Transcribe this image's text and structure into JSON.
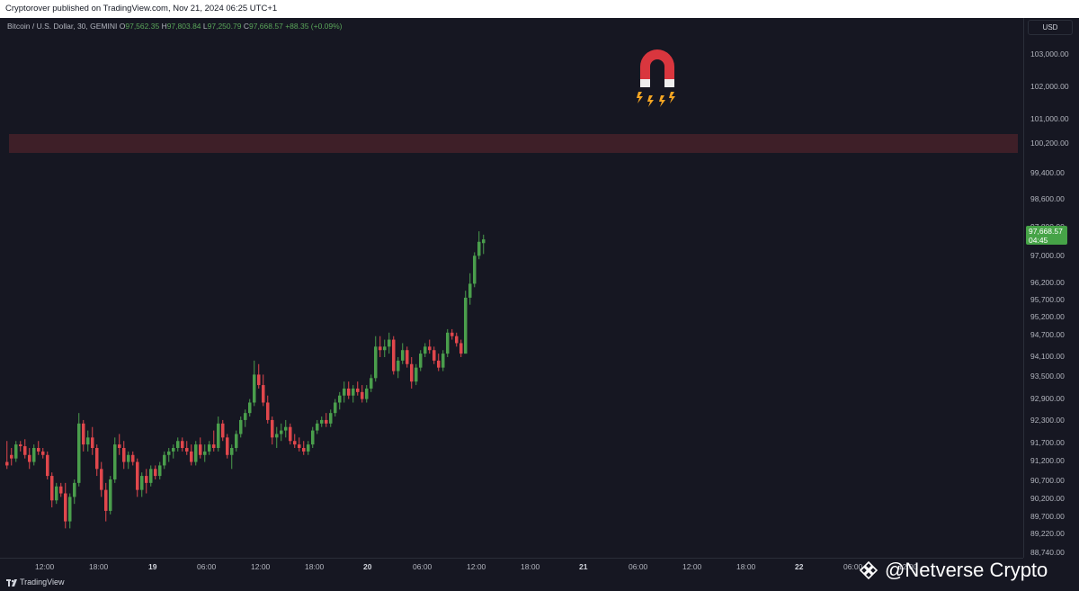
{
  "header": {
    "published_text": "Cryptorover published on TradingView.com, Nov 21, 2024 06:25 UTC+1"
  },
  "legend": {
    "symbol": "Bitcoin / U.S. Dollar, 30, GEMINI",
    "o_key": "O",
    "o_val": "97,562.35",
    "h_key": "H",
    "h_val": "97,803.84",
    "l_key": "L",
    "l_val": "97,250.79",
    "c_key": "C",
    "c_val": "97,668.57",
    "change": "+88.35 (+0.09%)"
  },
  "price_scale": {
    "currency": "USD",
    "labels": [
      "103,000.00",
      "102,000.00",
      "101,000.00",
      "100,200.00",
      "99,400.00",
      "98,600.00",
      "97,800.00",
      "97,000.00",
      "96,200.00",
      "95,700.00",
      "95,200.00",
      "94,700.00",
      "94,100.00",
      "93,500.00",
      "92,900.00",
      "92,300.00",
      "91,700.00",
      "91,200.00",
      "90,700.00",
      "90,200.00",
      "89,700.00",
      "89,220.00",
      "88,740.00"
    ],
    "current_price": "97,668.57",
    "countdown": "04:45"
  },
  "time_axis": {
    "labels": [
      "12:00",
      "18:00",
      "19",
      "06:00",
      "12:00",
      "18:00",
      "20",
      "06:00",
      "12:00",
      "18:00",
      "21",
      "06:00",
      "12:00",
      "18:00",
      "22",
      "06:00",
      "12:00"
    ],
    "bold": [
      false,
      false,
      true,
      false,
      false,
      false,
      true,
      false,
      false,
      false,
      true,
      false,
      false,
      false,
      true,
      false,
      false
    ]
  },
  "footer": {
    "brand": "TradingView"
  },
  "watermark": {
    "text": "@Netverse Crypto"
  },
  "colors": {
    "up": "#4a9e4c",
    "down": "#e0474c",
    "background": "#161722",
    "zone": "#3e1f28",
    "current_tag": "#46a347"
  },
  "annotations": {
    "magnet": "magnet-icon",
    "resistance_zone": "100,200.00"
  },
  "chart_data": {
    "type": "candlestick",
    "symbol": "BTCUSD",
    "interval": "30",
    "ylim": [
      88500,
      103600
    ],
    "resistance_zone": [
      100100,
      100600
    ],
    "candles": [
      [
        91300,
        91900,
        91100,
        91200
      ],
      [
        91500,
        91700,
        91200,
        91400
      ],
      [
        91400,
        91900,
        91300,
        91800
      ],
      [
        91800,
        91900,
        91600,
        91750
      ],
      [
        91750,
        91950,
        91400,
        91500
      ],
      [
        91500,
        91700,
        91100,
        91300
      ],
      [
        91300,
        91800,
        91200,
        91700
      ],
      [
        91700,
        91900,
        91500,
        91600
      ],
      [
        91600,
        91700,
        91400,
        91500
      ],
      [
        91500,
        91600,
        90800,
        90900
      ],
      [
        90900,
        91000,
        90000,
        90200
      ],
      [
        90200,
        90700,
        90100,
        90600
      ],
      [
        90600,
        90700,
        90300,
        90400
      ],
      [
        90400,
        90700,
        89400,
        89600
      ],
      [
        89600,
        90400,
        89400,
        90300
      ],
      [
        90300,
        90800,
        90100,
        90700
      ],
      [
        90700,
        92700,
        90600,
        92400
      ],
      [
        92400,
        92500,
        91600,
        91800
      ],
      [
        91800,
        92200,
        91600,
        92000
      ],
      [
        92000,
        92300,
        91500,
        91700
      ],
      [
        91700,
        91800,
        90900,
        91100
      ],
      [
        91100,
        91300,
        90300,
        90500
      ],
      [
        90500,
        90700,
        89600,
        89900
      ],
      [
        89900,
        90900,
        89800,
        90800
      ],
      [
        90800,
        92000,
        90700,
        91800
      ],
      [
        91800,
        92100,
        91500,
        91700
      ],
      [
        91700,
        91900,
        91100,
        91300
      ],
      [
        91300,
        91600,
        91100,
        91500
      ],
      [
        91500,
        91600,
        91200,
        91300
      ],
      [
        91300,
        91400,
        90300,
        90500
      ],
      [
        90500,
        91000,
        90300,
        90900
      ],
      [
        90900,
        91100,
        90400,
        90700
      ],
      [
        90700,
        91200,
        90600,
        91100
      ],
      [
        91100,
        91200,
        90800,
        90900
      ],
      [
        90900,
        91300,
        90800,
        91200
      ],
      [
        91200,
        91600,
        91100,
        91500
      ],
      [
        91500,
        91700,
        91300,
        91600
      ],
      [
        91600,
        91800,
        91400,
        91700
      ],
      [
        91700,
        92000,
        91600,
        91900
      ],
      [
        91900,
        92000,
        91600,
        91700
      ],
      [
        91700,
        91900,
        91500,
        91600
      ],
      [
        91600,
        91800,
        91200,
        91300
      ],
      [
        91300,
        91900,
        91200,
        91800
      ],
      [
        91800,
        92000,
        91400,
        91500
      ],
      [
        91500,
        91800,
        91300,
        91600
      ],
      [
        91600,
        91900,
        91500,
        91800
      ],
      [
        91800,
        92200,
        91600,
        91700
      ],
      [
        91700,
        92600,
        91600,
        92400
      ],
      [
        92400,
        92500,
        91900,
        92000
      ],
      [
        92000,
        92100,
        91400,
        91500
      ],
      [
        91500,
        91800,
        91100,
        91700
      ],
      [
        91700,
        92200,
        91600,
        92100
      ],
      [
        92100,
        92600,
        92000,
        92500
      ],
      [
        92500,
        92800,
        92300,
        92700
      ],
      [
        92700,
        93100,
        92600,
        93000
      ],
      [
        93000,
        94200,
        92900,
        93800
      ],
      [
        93800,
        94100,
        93400,
        93500
      ],
      [
        93500,
        93800,
        92900,
        93000
      ],
      [
        93000,
        93200,
        92400,
        92500
      ],
      [
        92500,
        92600,
        91800,
        92000
      ],
      [
        92000,
        92300,
        91700,
        92100
      ],
      [
        92100,
        92400,
        91900,
        92200
      ],
      [
        92200,
        92500,
        92000,
        92300
      ],
      [
        92300,
        92400,
        91800,
        91900
      ],
      [
        91900,
        92100,
        91700,
        91800
      ],
      [
        91800,
        92000,
        91600,
        91700
      ],
      [
        91700,
        91900,
        91500,
        91600
      ],
      [
        91600,
        91900,
        91500,
        91800
      ],
      [
        91800,
        92300,
        91700,
        92200
      ],
      [
        92200,
        92500,
        92100,
        92400
      ],
      [
        92400,
        92600,
        92300,
        92500
      ],
      [
        92500,
        92700,
        92300,
        92400
      ],
      [
        92400,
        92800,
        92300,
        92700
      ],
      [
        92700,
        93100,
        92600,
        93000
      ],
      [
        93000,
        93300,
        92800,
        93200
      ],
      [
        93200,
        93600,
        93000,
        93400
      ],
      [
        93400,
        93600,
        93100,
        93200
      ],
      [
        93200,
        93500,
        93000,
        93400
      ],
      [
        93400,
        93600,
        93200,
        93300
      ],
      [
        93300,
        93500,
        93000,
        93100
      ],
      [
        93100,
        93500,
        93000,
        93400
      ],
      [
        93400,
        93800,
        93300,
        93700
      ],
      [
        93700,
        94900,
        93600,
        94600
      ],
      [
        94600,
        94900,
        94300,
        94500
      ],
      [
        94500,
        94800,
        94300,
        94600
      ],
      [
        94600,
        95000,
        94400,
        94800
      ],
      [
        94800,
        94900,
        93800,
        93900
      ],
      [
        93900,
        94300,
        93700,
        94200
      ],
      [
        94200,
        94700,
        94100,
        94500
      ],
      [
        94500,
        94600,
        94000,
        94100
      ],
      [
        94100,
        94300,
        93400,
        93600
      ],
      [
        93600,
        94100,
        93500,
        94000
      ],
      [
        94000,
        94500,
        93900,
        94400
      ],
      [
        94400,
        94700,
        94300,
        94600
      ],
      [
        94600,
        94800,
        94400,
        94500
      ],
      [
        94500,
        94600,
        94100,
        94200
      ],
      [
        94200,
        94400,
        93900,
        94000
      ],
      [
        94000,
        94500,
        93900,
        94400
      ],
      [
        94400,
        95100,
        94300,
        95000
      ],
      [
        95000,
        95100,
        94800,
        94900
      ],
      [
        94900,
        95000,
        94600,
        94700
      ],
      [
        94700,
        94800,
        94300,
        94400
      ],
      [
        94400,
        96200,
        94400,
        96000
      ],
      [
        96000,
        96700,
        95800,
        96400
      ],
      [
        96400,
        97300,
        96300,
        97200
      ],
      [
        97200,
        97900,
        97100,
        97600
      ],
      [
        97562.35,
        97803.84,
        97250.79,
        97668.57
      ]
    ]
  }
}
